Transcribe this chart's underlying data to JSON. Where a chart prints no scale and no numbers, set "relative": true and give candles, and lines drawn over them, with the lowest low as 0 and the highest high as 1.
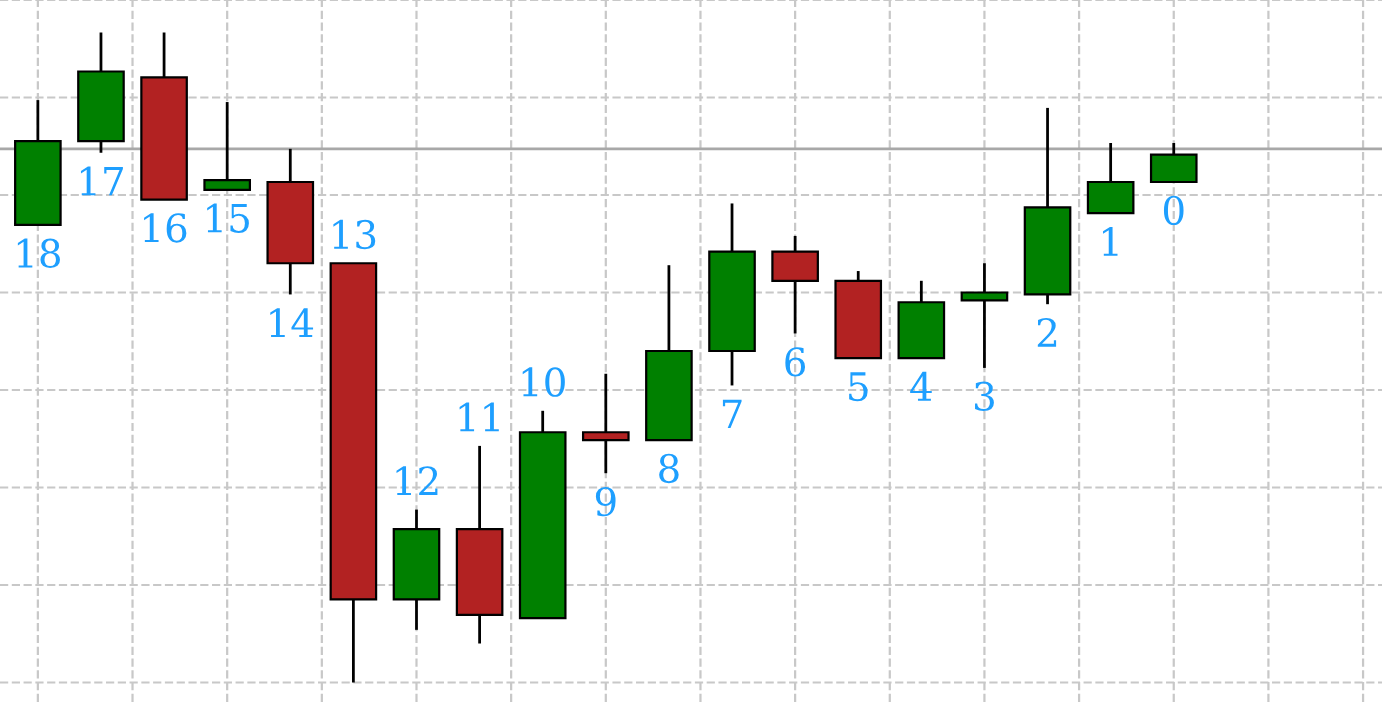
{
  "chart_data": {
    "type": "candlestick",
    "relative": true,
    "categories": [
      "18",
      "17",
      "16",
      "15",
      "14",
      "13",
      "12",
      "11",
      "10",
      "9",
      "8",
      "7",
      "6",
      "5",
      "4",
      "3",
      "2",
      "1",
      "0"
    ],
    "ohlc": [
      [
        0.704,
        0.896,
        0.704,
        0.833
      ],
      [
        0.833,
        1.0,
        0.815,
        0.94
      ],
      [
        0.931,
        1.0,
        0.743,
        0.743
      ],
      [
        0.758,
        0.893,
        0.758,
        0.773
      ],
      [
        0.77,
        0.821,
        0.597,
        0.645
      ],
      [
        0.645,
        0.645,
        0.0,
        0.128
      ],
      [
        0.128,
        0.266,
        0.081,
        0.236
      ],
      [
        0.236,
        0.364,
        0.06,
        0.104
      ],
      [
        0.099,
        0.418,
        0.099,
        0.385
      ],
      [
        0.385,
        0.475,
        0.322,
        0.373
      ],
      [
        0.373,
        0.642,
        0.373,
        0.51
      ],
      [
        0.51,
        0.737,
        0.457,
        0.663
      ],
      [
        0.663,
        0.687,
        0.537,
        0.618
      ],
      [
        0.618,
        0.633,
        0.499,
        0.499
      ],
      [
        0.499,
        0.618,
        0.499,
        0.585
      ],
      [
        0.588,
        0.645,
        0.484,
        0.6
      ],
      [
        0.597,
        0.884,
        0.582,
        0.731
      ],
      [
        0.722,
        0.83,
        0.722,
        0.77
      ],
      [
        0.77,
        0.83,
        0.77,
        0.812
      ]
    ],
    "colors": [
      "#008000",
      "#008000",
      "#b22222",
      "#008000",
      "#b22222",
      "#b22222",
      "#008000",
      "#b22222",
      "#008000",
      "#b22222",
      "#008000",
      "#008000",
      "#b22222",
      "#b22222",
      "#008000",
      "#008000",
      "#008000",
      "#008000",
      "#008000"
    ],
    "ref_lines": [
      {
        "axis": "y",
        "value": 0.821,
        "color": "#a8a8a8",
        "line_style": "solid"
      }
    ],
    "grid": true,
    "legend": false
  }
}
